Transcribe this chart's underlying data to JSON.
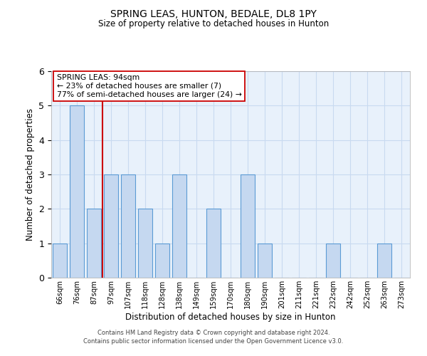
{
  "title": "SPRING LEAS, HUNTON, BEDALE, DL8 1PY",
  "subtitle": "Size of property relative to detached houses in Hunton",
  "xlabel": "Distribution of detached houses by size in Hunton",
  "ylabel": "Number of detached properties",
  "categories": [
    "66sqm",
    "76sqm",
    "87sqm",
    "97sqm",
    "107sqm",
    "118sqm",
    "128sqm",
    "138sqm",
    "149sqm",
    "159sqm",
    "170sqm",
    "180sqm",
    "190sqm",
    "201sqm",
    "211sqm",
    "221sqm",
    "232sqm",
    "242sqm",
    "252sqm",
    "263sqm",
    "273sqm"
  ],
  "values": [
    1,
    5,
    2,
    3,
    3,
    2,
    1,
    3,
    0,
    2,
    0,
    3,
    1,
    0,
    0,
    0,
    1,
    0,
    0,
    1,
    0
  ],
  "bar_color": "#c5d8f0",
  "bar_edge_color": "#5b9bd5",
  "grid_color": "#c8daf0",
  "background_color": "#e8f1fb",
  "red_line_x": 2.5,
  "red_line_color": "#cc0000",
  "annotation_line1": "SPRING LEAS: 94sqm",
  "annotation_line2": "← 23% of detached houses are smaller (7)",
  "annotation_line3": "77% of semi-detached houses are larger (24) →",
  "annotation_box_color": "#ffffff",
  "annotation_box_edge": "#cc0000",
  "footer_line1": "Contains HM Land Registry data © Crown copyright and database right 2024.",
  "footer_line2": "Contains public sector information licensed under the Open Government Licence v3.0.",
  "ylim": [
    0,
    6
  ],
  "yticks": [
    0,
    1,
    2,
    3,
    4,
    5,
    6
  ]
}
